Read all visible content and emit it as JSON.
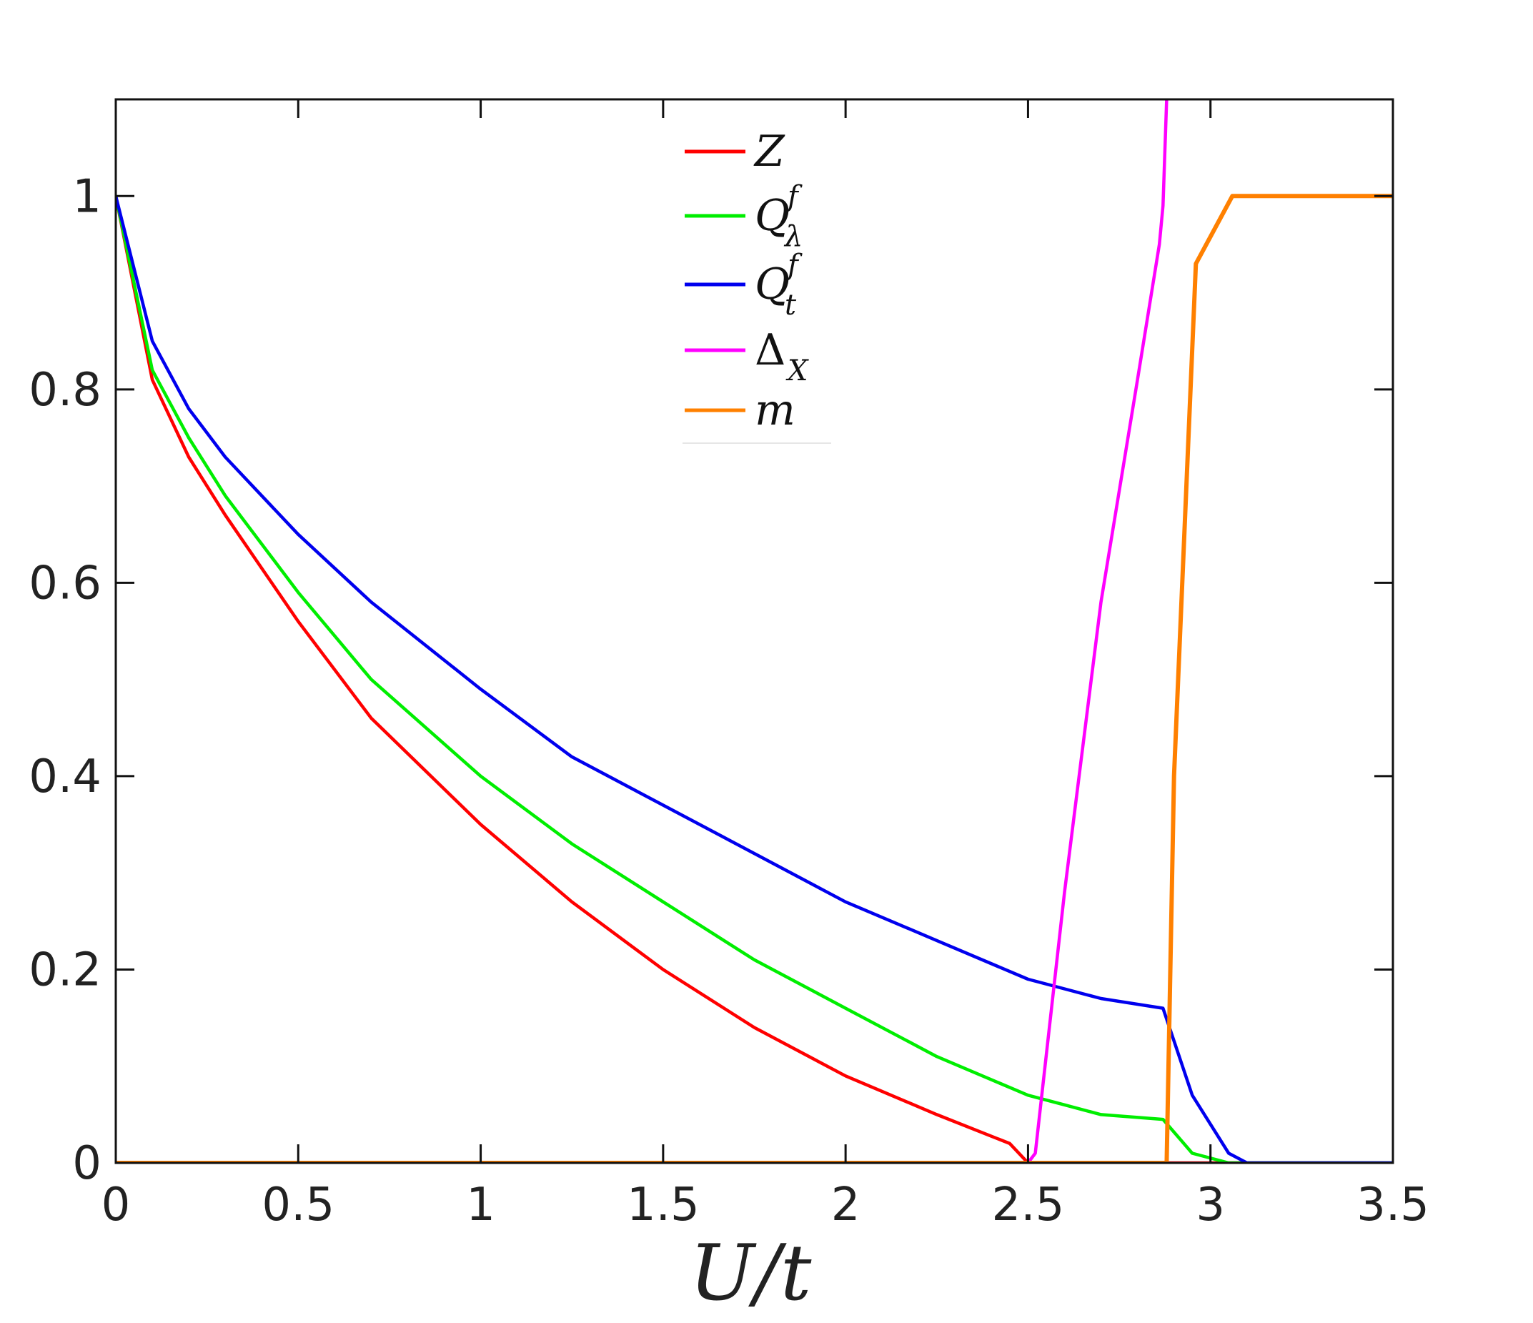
{
  "chart_data": {
    "type": "line",
    "title": "",
    "xlabel": "U/t",
    "ylabel": "",
    "xlim": [
      0,
      3.5
    ],
    "ylim": [
      0,
      1.1
    ],
    "grid": false,
    "legend_position": "top-center",
    "x_ticks": [
      0,
      0.5,
      1,
      1.5,
      2,
      2.5,
      3,
      3.5
    ],
    "x_tick_labels": [
      "0",
      "0.5",
      "1",
      "1.5",
      "2",
      "2.5",
      "3",
      "3.5"
    ],
    "y_ticks": [
      0,
      0.2,
      0.4,
      0.6,
      0.8,
      1
    ],
    "y_tick_labels": [
      "0",
      "0.2",
      "0.4",
      "0.6",
      "0.8",
      "1"
    ],
    "series": [
      {
        "name": "Z",
        "legend": {
          "base": "Z",
          "sup": "",
          "sub": ""
        },
        "color": "#ff0000",
        "x": [
          0,
          0.1,
          0.2,
          0.3,
          0.5,
          0.7,
          1.0,
          1.25,
          1.5,
          1.75,
          2.0,
          2.25,
          2.45,
          2.5,
          2.55,
          3.0,
          3.5
        ],
        "y": [
          1.0,
          0.81,
          0.73,
          0.67,
          0.56,
          0.46,
          0.35,
          0.27,
          0.2,
          0.14,
          0.09,
          0.05,
          0.02,
          0.0,
          0.0,
          0.0,
          0.0
        ]
      },
      {
        "name": "Q_λ^f",
        "legend": {
          "base": "Q",
          "sup": "f",
          "sub": "λ"
        },
        "color": "#00ee00",
        "x": [
          0,
          0.1,
          0.2,
          0.3,
          0.5,
          0.7,
          1.0,
          1.25,
          1.5,
          1.75,
          2.0,
          2.25,
          2.5,
          2.6,
          2.7,
          2.87,
          2.95,
          3.05,
          3.5
        ],
        "y": [
          1.0,
          0.82,
          0.75,
          0.69,
          0.59,
          0.5,
          0.4,
          0.33,
          0.27,
          0.21,
          0.16,
          0.11,
          0.07,
          0.06,
          0.05,
          0.045,
          0.01,
          0.0,
          0.0
        ]
      },
      {
        "name": "Q_t^f",
        "legend": {
          "base": "Q",
          "sup": "f",
          "sub": "t"
        },
        "color": "#0000ee",
        "x": [
          0,
          0.1,
          0.2,
          0.3,
          0.5,
          0.7,
          1.0,
          1.25,
          1.5,
          1.75,
          2.0,
          2.25,
          2.5,
          2.6,
          2.7,
          2.87,
          2.95,
          3.05,
          3.1,
          3.5
        ],
        "y": [
          1.0,
          0.85,
          0.78,
          0.73,
          0.65,
          0.58,
          0.49,
          0.42,
          0.37,
          0.32,
          0.27,
          0.23,
          0.19,
          0.18,
          0.17,
          0.16,
          0.07,
          0.01,
          0.0,
          0.0
        ]
      },
      {
        "name": "Δ_X",
        "legend": {
          "base": "Δ",
          "sup": "",
          "sub": "X"
        },
        "color": "#ff00ff",
        "x": [
          0,
          2.5,
          2.52,
          2.6,
          2.7,
          2.8,
          2.86,
          2.87,
          2.88
        ],
        "y": [
          0.0,
          0.0,
          0.01,
          0.28,
          0.58,
          0.81,
          0.95,
          0.99,
          1.1
        ]
      },
      {
        "name": "m",
        "legend": {
          "base": "m",
          "sup": "",
          "sub": ""
        },
        "color": "#ff8000",
        "x": [
          0,
          2.87,
          2.88,
          2.9,
          2.96,
          3.06,
          3.5
        ],
        "y": [
          0.0,
          0.0,
          0.0,
          0.4,
          0.93,
          1.0,
          1.0
        ]
      }
    ]
  }
}
